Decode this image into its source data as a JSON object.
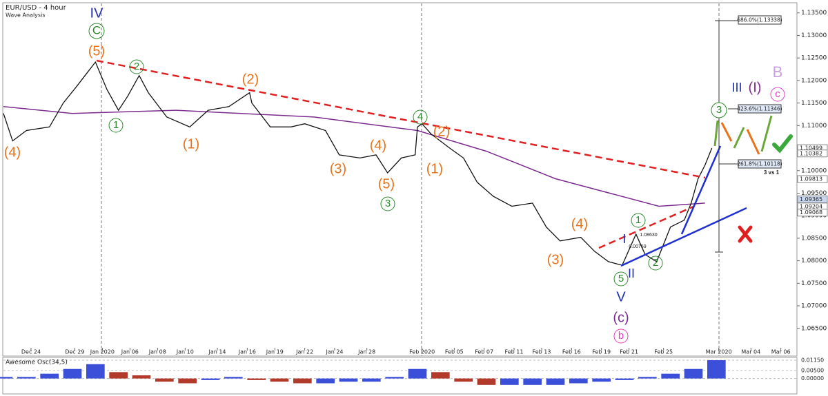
{
  "chart_data": {
    "type": "line",
    "title": "EUR/USD - 4 hour",
    "subtitle": "Wave Analysis",
    "xlim": [
      0,
      345
    ],
    "xticks": [
      {
        "value": 12,
        "label": "Dec 24"
      },
      {
        "value": 31,
        "label": "Dec 29"
      },
      {
        "value": 43,
        "label": "Jan 2020"
      },
      {
        "value": 55,
        "label": "Jan 06"
      },
      {
        "value": 67,
        "label": "Jan 08"
      },
      {
        "value": 79,
        "label": "Jan 10"
      },
      {
        "value": 93,
        "label": "Jan 14"
      },
      {
        "value": 106,
        "label": "Jan 16"
      },
      {
        "value": 118,
        "label": "Jan 19"
      },
      {
        "value": 131,
        "label": "Jan 22"
      },
      {
        "value": 144,
        "label": "Jan 24"
      },
      {
        "value": 158,
        "label": "Jan 28"
      },
      {
        "value": 182,
        "label": "Feb 2020"
      },
      {
        "value": 196,
        "label": "Feb 05"
      },
      {
        "value": 209,
        "label": "Feb 07"
      },
      {
        "value": 222,
        "label": "Feb 11"
      },
      {
        "value": 234,
        "label": "Feb 13"
      },
      {
        "value": 247,
        "label": "Feb 16"
      },
      {
        "value": 260,
        "label": "Feb 19"
      },
      {
        "value": 272,
        "label": "Feb 21"
      },
      {
        "value": 287,
        "label": "Feb 25"
      },
      {
        "value": 311,
        "label": "Mar 2020"
      },
      {
        "value": 325,
        "label": "Mar 04"
      },
      {
        "value": 338,
        "label": "Mar 06"
      }
    ],
    "ylim": [
      1.0587,
      1.1371
    ],
    "yticks": [
      {
        "value": 1.065,
        "label": "1.06500"
      },
      {
        "value": 1.07,
        "label": "1.07000"
      },
      {
        "value": 1.075,
        "label": "1.07500"
      },
      {
        "value": 1.08,
        "label": "1.08000"
      },
      {
        "value": 1.085,
        "label": "1.08500"
      },
      {
        "value": 1.09,
        "label": "1.09000"
      },
      {
        "value": 1.095,
        "label": "1.09500"
      },
      {
        "value": 1.1,
        "label": "1.10000"
      },
      {
        "value": 1.105,
        "label": "1.10500"
      },
      {
        "value": 1.11,
        "label": "1.11000"
      },
      {
        "value": 1.115,
        "label": "1.11500"
      },
      {
        "value": 1.12,
        "label": "1.12000"
      },
      {
        "value": 1.125,
        "label": "1.12500"
      },
      {
        "value": 1.13,
        "label": "1.13000"
      },
      {
        "value": 1.135,
        "label": "1.13500"
      }
    ],
    "x": [
      0,
      4,
      10,
      20,
      26,
      32,
      40,
      45,
      50,
      54,
      59,
      63,
      71,
      81,
      89,
      98,
      107,
      108,
      116,
      125,
      131,
      140,
      146,
      155,
      162,
      167,
      173,
      179,
      180,
      182,
      186,
      194,
      200,
      206,
      213,
      221,
      230,
      236,
      242,
      251,
      257,
      263,
      269,
      275,
      279,
      284,
      290,
      296,
      299,
      302,
      305,
      308
    ],
    "series": [
      {
        "name": "EUR/USD",
        "color": "#111111",
        "values": [
          1.1127,
          1.1066,
          1.1089,
          1.1097,
          1.115,
          1.1188,
          1.1241,
          1.118,
          1.1134,
          1.1165,
          1.1211,
          1.1173,
          1.1119,
          1.1097,
          1.1134,
          1.1142,
          1.1173,
          1.115,
          1.1097,
          1.1097,
          1.1104,
          1.1089,
          1.1035,
          1.1028,
          1.1035,
          1.0995,
          1.1028,
          1.1035,
          1.1097,
          1.1104,
          1.1081,
          1.105,
          1.1028,
          1.0974,
          1.0943,
          1.0921,
          1.0928,
          1.0875,
          1.0844,
          1.0852,
          1.0821,
          1.0798,
          1.079,
          1.0859,
          1.0814,
          1.0798,
          1.0875,
          1.089,
          1.0928,
          1.0982,
          1.1012,
          1.105
        ]
      }
    ],
    "ma": {
      "color": "#7b2a8e",
      "x": [
        0,
        30,
        75,
        135,
        180,
        210,
        240,
        285,
        305
      ],
      "values": [
        1.1142,
        1.1127,
        1.1134,
        1.1119,
        1.1089,
        1.1043,
        1.0982,
        1.0921,
        1.0928
      ]
    },
    "price_tags": [
      {
        "value": 1.10499,
        "label": "1.10499",
        "color": "#000000",
        "bg": "#ffffff"
      },
      {
        "value": 1.10382,
        "label": "1.10382",
        "color": "#000000",
        "bg": "#ffffff"
      },
      {
        "value": 1.09813,
        "label": "1.09813",
        "color": "#cc0000",
        "bg": "#ffffff"
      },
      {
        "value": 1.09365,
        "label": "1.09365",
        "color": "#000000",
        "bg": "#c9d8f0"
      },
      {
        "value": 1.09204,
        "label": "1.09204",
        "color": "#000000",
        "bg": "#ffffff"
      },
      {
        "value": 1.09068,
        "label": "1.09068",
        "color": "#000000",
        "bg": "#ffffff"
      }
    ],
    "fib_labels": [
      "686.0%(1.13338)",
      "423.6%(1.11346)",
      "261.8%(1.10118)"
    ],
    "annotations": [
      "IV",
      "C",
      "(5)",
      "(4)",
      "2",
      "1",
      "(2)",
      "(1)",
      "(3)",
      "(4)",
      "(5)",
      "3",
      "4",
      "(2)",
      "(1)",
      "(4)",
      "(3)",
      "1",
      "I",
      "2",
      "II",
      "5",
      "V",
      "(c)",
      "b",
      "3",
      "III",
      "(I)",
      "B",
      "c",
      "3 vs 1",
      "1.08630",
      "0.00759"
    ],
    "oscillator": {
      "title": "Awesome Osc(34,5)",
      "up_color": "#3b4fd8",
      "down_color": "#b23a2a",
      "ylim": [
        -0.0097,
        0.0128
      ],
      "yticks": [
        {
          "value": 0.0115,
          "label": "0.01150"
        },
        {
          "value": 0.005,
          "label": "0.00500"
        },
        {
          "value": 0,
          "label": "0.00000"
        }
      ],
      "x": [
        0,
        10,
        20,
        30,
        40,
        50,
        60,
        70,
        80,
        90,
        100,
        110,
        120,
        130,
        140,
        150,
        160,
        170,
        180,
        190,
        200,
        210,
        220,
        230,
        240,
        250,
        260,
        270,
        280,
        290,
        300,
        310
      ],
      "values": [
        0.001,
        0.001,
        0.003,
        0.006,
        0.009,
        0.004,
        0.002,
        -0.002,
        -0.003,
        -0.001,
        0.001,
        -0.001,
        -0.002,
        -0.003,
        -0.003,
        -0.002,
        -0.002,
        0.001,
        0.006,
        0.004,
        -0.002,
        -0.004,
        -0.004,
        -0.004,
        -0.004,
        -0.003,
        -0.002,
        -0.001,
        0.001,
        0.003,
        0.006,
        0.0115
      ]
    }
  }
}
